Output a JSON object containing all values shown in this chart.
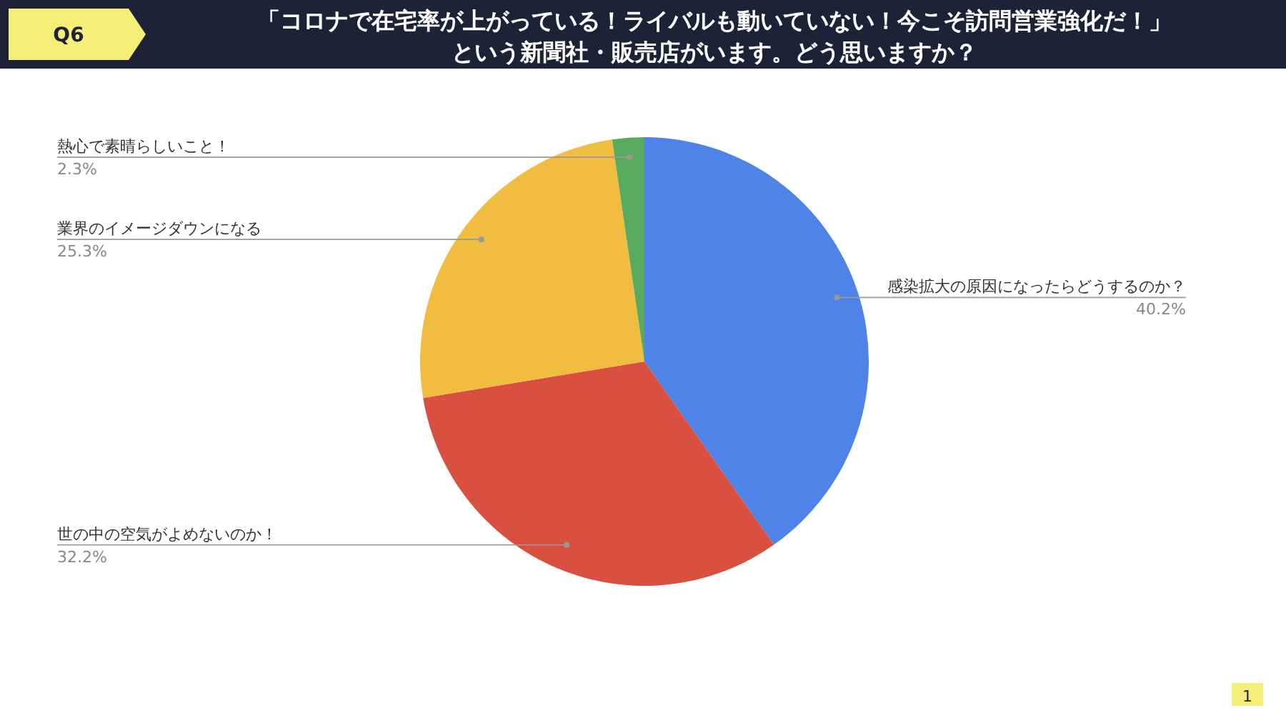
{
  "chart_data": {
    "type": "pie",
    "title": "「コロナで在宅率が上がっている！ライバルも動いていない！今こそ訪問営業強化だ！」",
    "subtitle": "という新聞社・販売店がいます。どう思いますか？",
    "categories": [
      "感染拡大の原因になったらどうするのか？",
      "世の中の空気がよめないのか！",
      "業界のイメージダウンになる",
      "熱心で素晴らしいこと！"
    ],
    "values": [
      40.2,
      32.2,
      25.3,
      2.3
    ],
    "colors": [
      "#4f83e8",
      "#d95040",
      "#f0bd40",
      "#57aa5e"
    ],
    "value_labels": [
      "40.2%",
      "32.2%",
      "25.3%",
      "2.3%"
    ],
    "annotations": [
      "Q6",
      "1"
    ]
  }
}
